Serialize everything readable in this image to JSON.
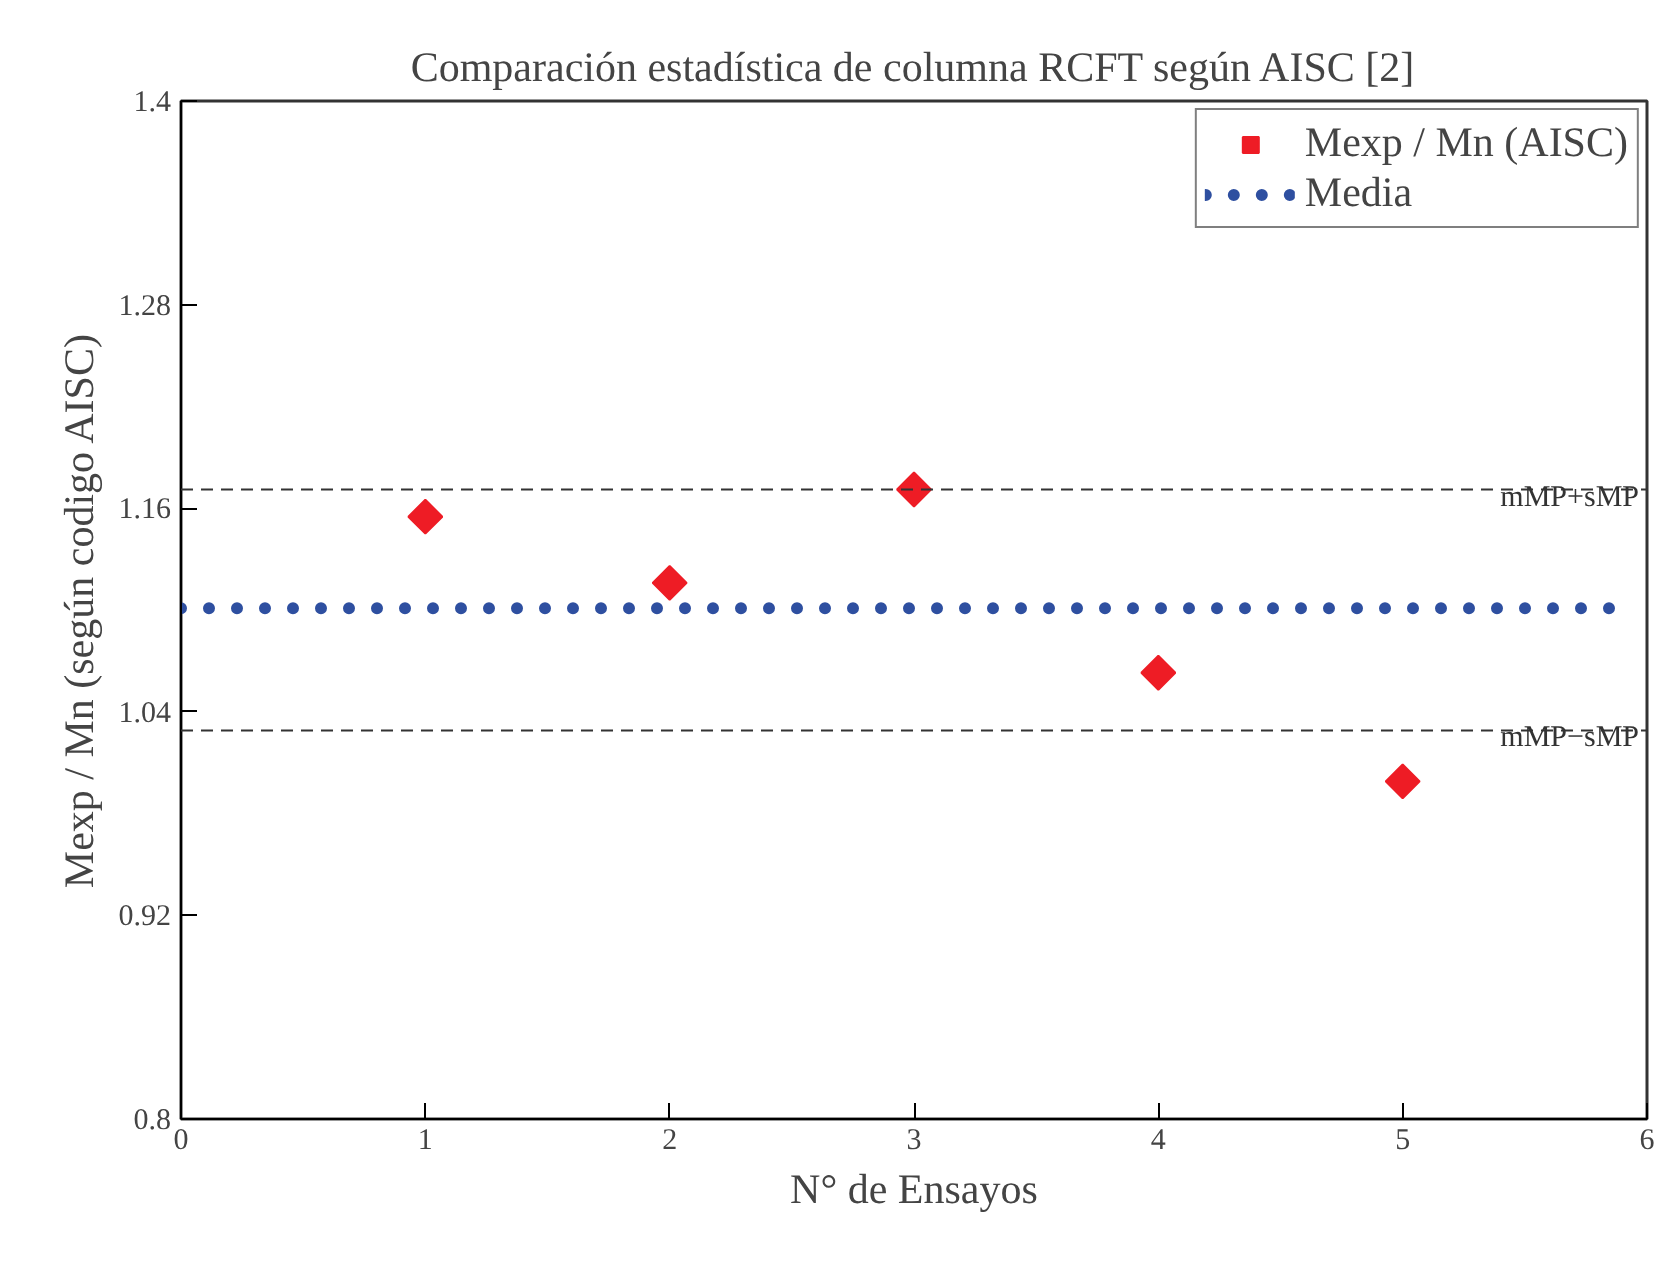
{
  "chart_data": {
    "type": "scatter",
    "title": "Comparación estadística de columna RCFT según AISC [2]",
    "xlabel": "N° de Ensayos",
    "ylabel": "Mexp / Mn (según codigo AISC)",
    "x": [
      1,
      2,
      3,
      4,
      5
    ],
    "series": [
      {
        "name": "Mexp / Mn (AISC)",
        "color": "#ee1c25",
        "marker": "diamond",
        "values": [
          1.155,
          1.116,
          1.171,
          1.063,
          0.999
        ]
      },
      {
        "name": "Media",
        "color": "#2e4fa0",
        "type": "line",
        "line_style": "dotted",
        "x": [
          0,
          5.9
        ],
        "values": [
          1.101,
          1.101
        ]
      }
    ],
    "ref_lines": [
      {
        "axis": "y",
        "value": 1.171,
        "label": "mMP+sMP",
        "color": "#333333",
        "line_style": "dashed"
      },
      {
        "axis": "y",
        "value": 1.029,
        "label": "mMP−sMP",
        "color": "#333333",
        "line_style": "dashed"
      }
    ],
    "xlim": [
      0,
      6
    ],
    "ylim": [
      0.8,
      1.4
    ],
    "xticks": [
      0,
      1,
      2,
      3,
      4,
      5,
      6
    ],
    "yticks": [
      0.8,
      0.92,
      1.04,
      1.16,
      1.28,
      1.4
    ],
    "grid": false,
    "legend": "top right"
  }
}
